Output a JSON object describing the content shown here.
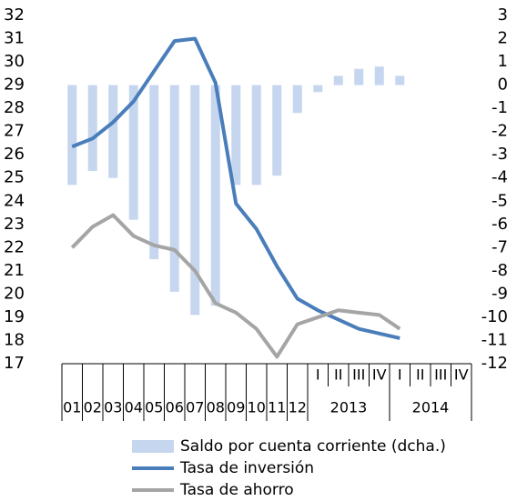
{
  "chart_data": {
    "type": "bar-line",
    "categories": [
      "01",
      "02",
      "03",
      "04",
      "05",
      "06",
      "07",
      "08",
      "09",
      "10",
      "11",
      "12",
      "I",
      "II",
      "III",
      "IV",
      "I",
      "II",
      "III",
      "IV"
    ],
    "groups": [
      {
        "label": "2013",
        "from": 12,
        "to": 15
      },
      {
        "label": "2014",
        "from": 16,
        "to": 19
      }
    ],
    "series": [
      {
        "name": "Saldo por cuenta corriente (dcha.)",
        "color": "#c6d6ef",
        "kind": "bar",
        "axis": "y2",
        "values": [
          -4.3,
          -3.7,
          -4.0,
          -5.8,
          -7.5,
          -8.9,
          -9.9,
          -9.5,
          -4.3,
          -4.3,
          -3.9,
          -1.2,
          -0.3,
          0.4,
          0.7,
          0.8,
          0.4,
          null,
          null,
          null
        ]
      },
      {
        "name": "Tasa de inversión",
        "color": "#4a7ebb",
        "kind": "line",
        "values": [
          26.35,
          26.7,
          27.4,
          28.3,
          29.6,
          30.9,
          31.0,
          29.1,
          23.9,
          22.8,
          21.2,
          19.8,
          19.3,
          18.9,
          18.5,
          18.3,
          18.1,
          null,
          null,
          null
        ]
      },
      {
        "name": "Tasa de ahorro",
        "color": "#a5a5a5",
        "kind": "line",
        "values": [
          22.0,
          22.9,
          23.4,
          22.5,
          22.1,
          21.9,
          21.0,
          19.6,
          19.2,
          18.5,
          17.3,
          18.7,
          19.0,
          19.3,
          19.2,
          19.1,
          18.5,
          null,
          null,
          null
        ]
      }
    ],
    "ylim": [
      17,
      32
    ],
    "yticks": [
      17,
      18,
      19,
      20,
      21,
      22,
      23,
      24,
      25,
      26,
      27,
      28,
      29,
      30,
      31,
      32
    ],
    "y2lim": [
      -12,
      3
    ],
    "y2ticks": [
      -12,
      -11,
      -10,
      -9,
      -8,
      -7,
      -6,
      -5,
      -4,
      -3,
      -2,
      -1,
      0,
      1,
      2,
      3
    ]
  }
}
